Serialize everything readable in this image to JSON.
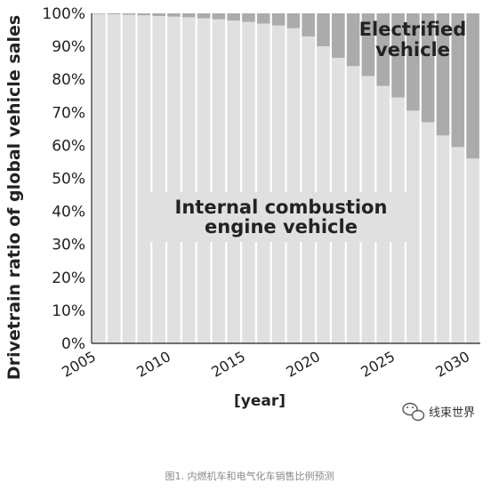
{
  "chart_data": {
    "type": "bar",
    "stacked": true,
    "ylabel": "Drivetrain ratio of global vehicle sales",
    "xlabel": "[year]",
    "ylim": [
      0,
      100
    ],
    "xlim": [
      2005,
      2031
    ],
    "yticks": [
      "0%",
      "10%",
      "20%",
      "30%",
      "40%",
      "50%",
      "60%",
      "70%",
      "80%",
      "90%",
      "100%"
    ],
    "xticks": [
      "2005",
      "2010",
      "2015",
      "2020",
      "2025",
      "2030"
    ],
    "xtick_values": [
      2005,
      2010,
      2015,
      2020,
      2025,
      2030
    ],
    "categories": [
      2006,
      2007,
      2008,
      2009,
      2010,
      2011,
      2012,
      2013,
      2014,
      2015,
      2016,
      2017,
      2018,
      2019,
      2020,
      2021,
      2022,
      2023,
      2024,
      2025,
      2026,
      2027,
      2028,
      2029,
      2030,
      2031
    ],
    "series": [
      {
        "name": "Internal combustion engine vehicle",
        "color": "#e0e0e0",
        "values": [
          99.8,
          99.7,
          99.6,
          99.4,
          99.2,
          99.0,
          98.8,
          98.5,
          98.2,
          97.8,
          97.4,
          96.9,
          96.3,
          95.5,
          93.0,
          90.0,
          86.5,
          84.0,
          81.0,
          78.0,
          74.5,
          70.5,
          67.0,
          63.0,
          59.5,
          56.0
        ]
      },
      {
        "name": "Electrified vehicle",
        "color": "#ababab",
        "values": [
          0.2,
          0.3,
          0.4,
          0.6,
          0.8,
          1.0,
          1.2,
          1.5,
          1.8,
          2.2,
          2.6,
          3.1,
          3.7,
          4.5,
          7.0,
          10.0,
          13.5,
          16.0,
          19.0,
          22.0,
          25.5,
          29.5,
          33.0,
          37.0,
          40.5,
          44.0
        ]
      }
    ],
    "annotations": {
      "electrified_line1": "Electrified",
      "electrified_line2": "vehicle",
      "ice_line1": "Internal combustion",
      "ice_line2": "engine vehicle"
    }
  },
  "watermark": {
    "text": "线束世界",
    "icon": "wechat-icon"
  },
  "caption": "图1. 内燃机车和电气化车销售比例预测"
}
